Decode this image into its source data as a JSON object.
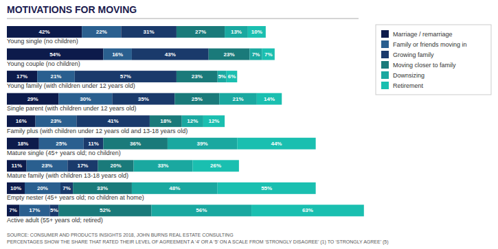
{
  "chart_data": {
    "type": "bar",
    "orientation": "horizontal",
    "stacked": true,
    "data_labels": true,
    "tick_labels": false,
    "grid": false,
    "legend": "upper right",
    "title": "MOTIVATIONS FOR MOVING",
    "annotations": [
      "SOURCE: CONSUMER AND PRODUCTS INSIGHTS 2018, JOHN BURNS REAL ESTATE CONSULTING",
      "PERCENTAGES SHOW THE SHARE THAT RATED THEIR LEVEL OF AGREEMENT A ‘4’ OR A ‘5’ ON A SCALE FROM ‘STRONGLY DISAGREE’ (1) TO ‘STRONGLY AGREE’ (5)"
    ],
    "categories": [
      "Young single (no children)",
      "Young couple (no children)",
      "Young family (with children under 12 years old)",
      "Single parent (with children under 12 years old)",
      "Family plus (with children under 12 years old and 13-18 years old)",
      "Mature single (45+ years old; no children)",
      "Mature family (with children 13-18 years old)",
      "Empty nester (45+ years old; no children at home)",
      "Active adult (55+ years old; retired)"
    ],
    "xlim": [
      0,
      202
    ],
    "series": [
      {
        "name": "Marriage / remarriage",
        "color": "#0d1b4b",
        "values": [
          42,
          54,
          17,
          29,
          16,
          18,
          11,
          10,
          7
        ],
        "value_labels": [
          "42%",
          "54%",
          "17%",
          "29%",
          "16%",
          "18%",
          "11%",
          "10%",
          "7%"
        ]
      },
      {
        "name": "Family or friends moving in",
        "color": "#2a5f8f",
        "values": [
          22,
          16,
          21,
          30,
          23,
          25,
          23,
          20,
          17
        ],
        "value_labels": [
          "22%",
          "16%",
          "21%",
          "30%",
          "23%",
          "25%",
          "23%",
          "20%",
          "17%"
        ]
      },
      {
        "name": "Growing family",
        "color": "#1a3a6b",
        "values": [
          31,
          43,
          57,
          35,
          41,
          11,
          17,
          7,
          5
        ],
        "value_labels": [
          "31%",
          "43%",
          "57%",
          "35%",
          "41%",
          "11%",
          "17%",
          "7%",
          "5%"
        ]
      },
      {
        "name": "Moving closer to family",
        "color": "#1a7a7a",
        "values": [
          27,
          23,
          23,
          25,
          18,
          36,
          20,
          33,
          52
        ],
        "value_labels": [
          "27%",
          "23%",
          "23%",
          "25%",
          "18%",
          "36%",
          "20%",
          "33%",
          "52%"
        ]
      },
      {
        "name": "Downsizing",
        "color": "#1aa8a0",
        "values": [
          13,
          7,
          5,
          21,
          12,
          39,
          33,
          48,
          56
        ],
        "value_labels": [
          "13%",
          "7%",
          "5%",
          "21%",
          "12%",
          "39%",
          "33%",
          "48%",
          "56%"
        ]
      },
      {
        "name": "Retirement",
        "color": "#1abfb0",
        "values": [
          10,
          7,
          6,
          14,
          12,
          44,
          26,
          55,
          63
        ],
        "value_labels": [
          "10%",
          "7%",
          "6%",
          "14%",
          "12%",
          "44%",
          "26%",
          "55%",
          "63%"
        ]
      }
    ]
  }
}
